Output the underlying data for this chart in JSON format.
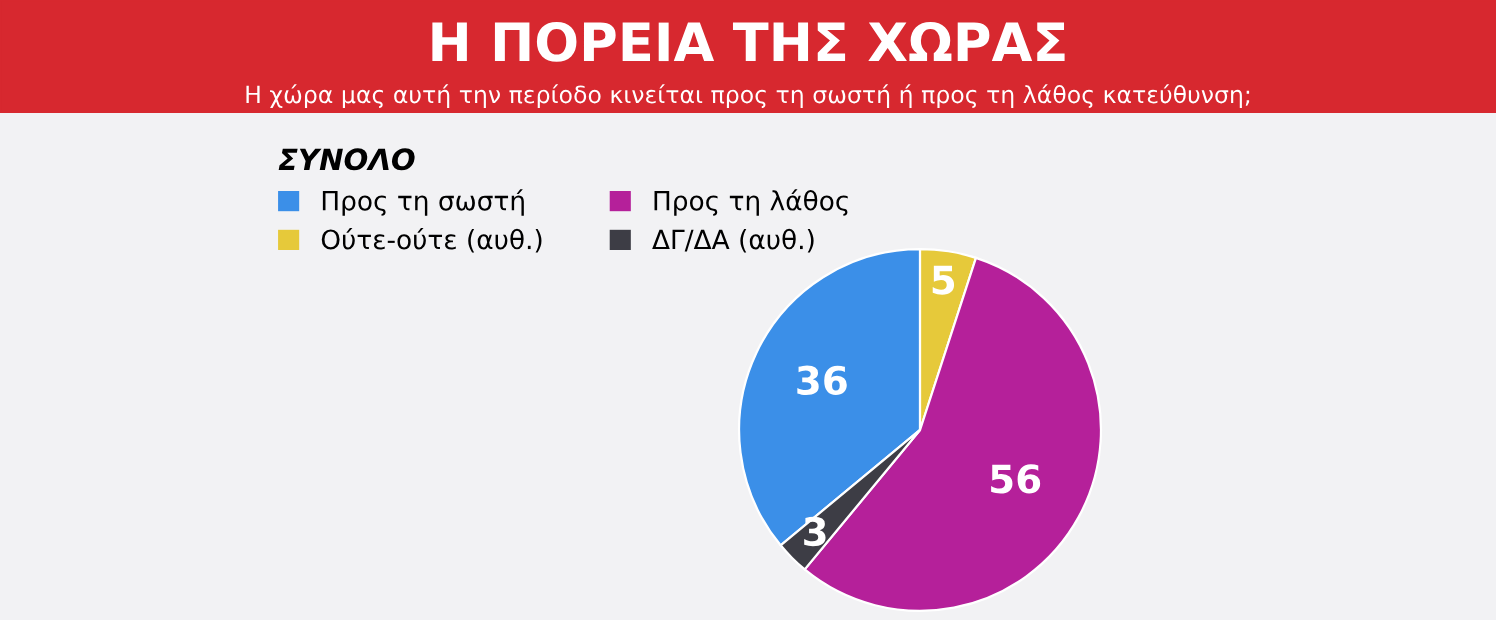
{
  "chart_data": {
    "type": "pie",
    "title": "Η ΠΟΡΕΙΑ ΤΗΣ ΧΩΡΑΣ",
    "subtitle": "Η χώρα μας αυτή την περίοδο κινείται προς τη σωστή ή προς τη λάθος κατεύθυνση;",
    "legend_title": "ΣΥΝΟΛΟ",
    "categories": [
      "Προς τη σωστή",
      "Ούτε-ούτε (αυθ.)",
      "Προς τη λάθος",
      "ΔΓ/ΔΑ (αυθ.)"
    ],
    "values": [
      36,
      5,
      56,
      3
    ],
    "colors": [
      "#3b8fe8",
      "#e6c93a",
      "#b5209a",
      "#3d3d45"
    ],
    "data_labels": true,
    "legend": "top left"
  }
}
